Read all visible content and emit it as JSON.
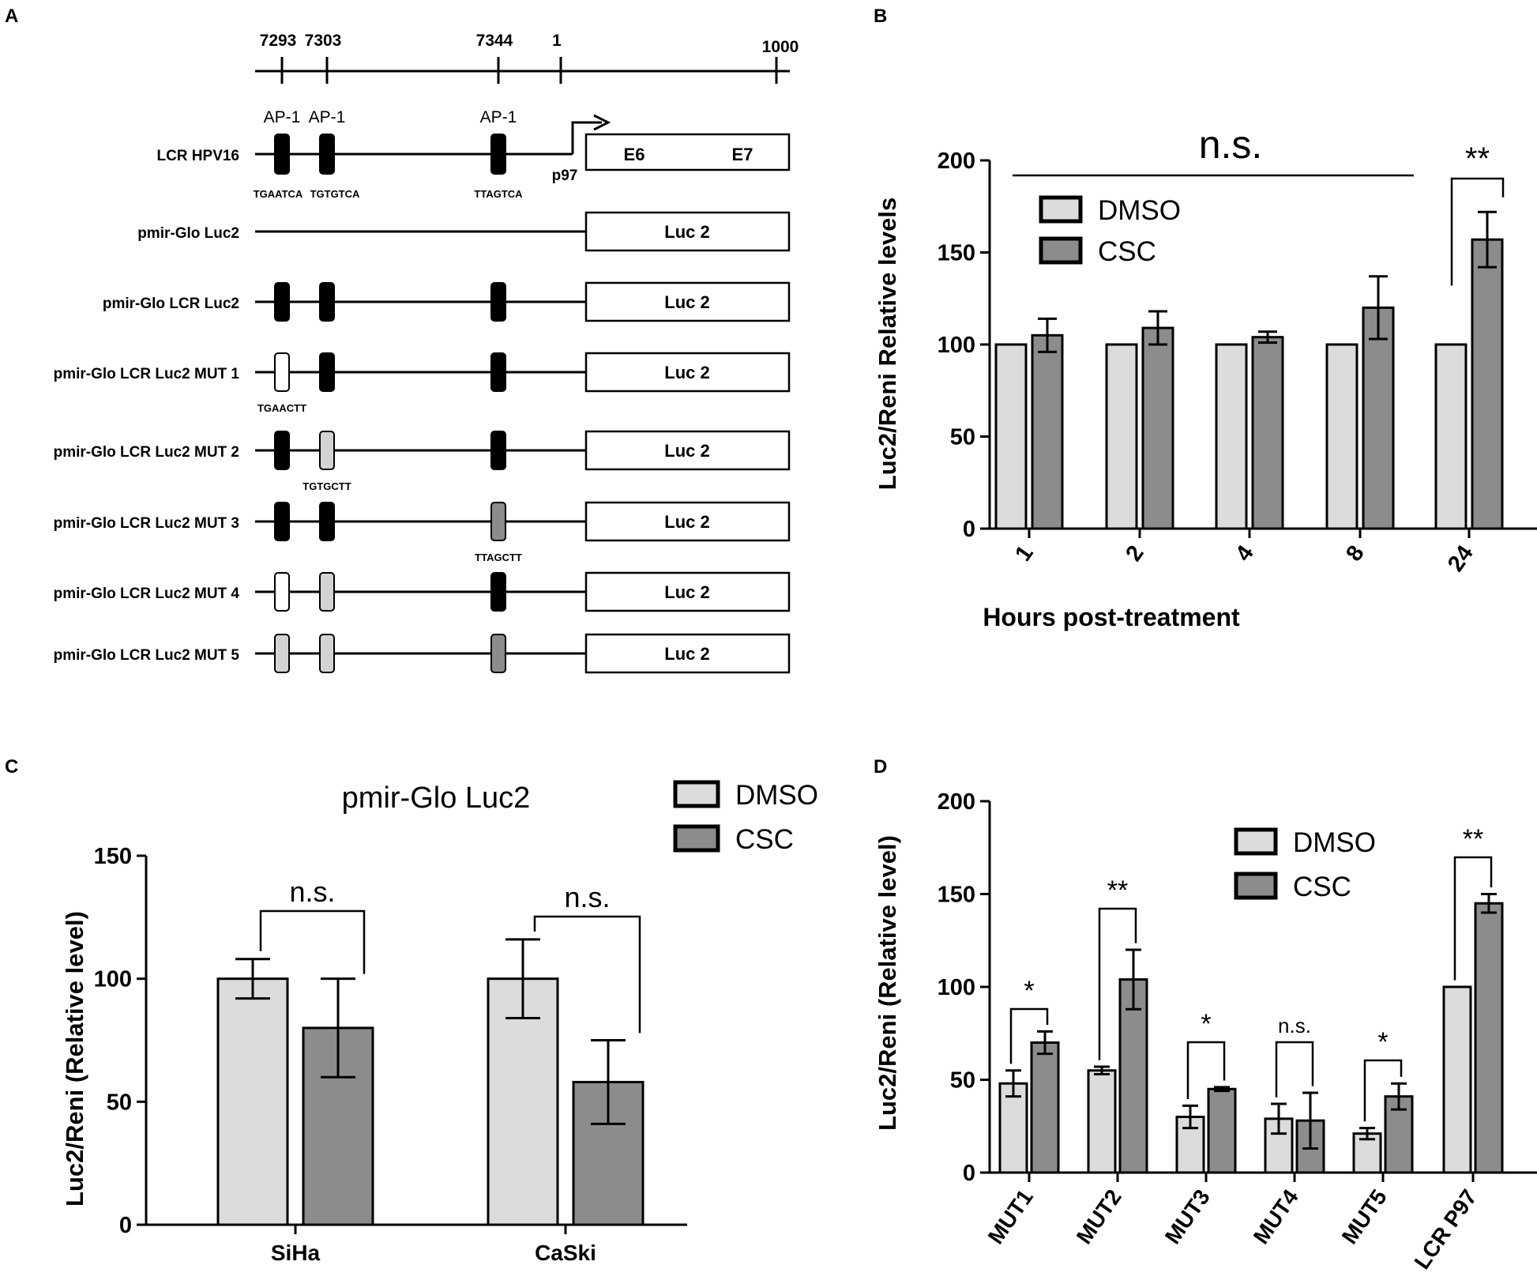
{
  "colors": {
    "dmso": "#dcdcdc",
    "csc": "#8c8c8c",
    "stroke": "#000000",
    "filled_site": "#000000",
    "open_site": "#ffffff",
    "light_site": "#d3d3d3",
    "grey_site": "#8c8c8c"
  },
  "panel_a": {
    "letter": "A",
    "axis_ticks": [
      "7293",
      "7303",
      "7344",
      "1",
      "1000"
    ],
    "lcr": {
      "name": "LCR HPV16",
      "site_label": "AP-1",
      "sequences": [
        "TGAATCA",
        "TGTGTCA",
        "TTAGTCA"
      ],
      "promoter": "p97",
      "box_labels": [
        "E6",
        "E7"
      ]
    },
    "constructs": [
      {
        "name": "pmir-Glo Luc2",
        "box": "Luc 2",
        "sites": [
          "none",
          "none",
          "none"
        ],
        "mutation": ""
      },
      {
        "name": "pmir-Glo LCR Luc2",
        "box": "Luc 2",
        "sites": [
          "black",
          "black",
          "black"
        ],
        "mutation": ""
      },
      {
        "name": "pmir-Glo LCR Luc2 MUT 1",
        "box": "Luc 2",
        "sites": [
          "white",
          "black",
          "black"
        ],
        "mutation": "TGAACTT"
      },
      {
        "name": "pmir-Glo LCR Luc2 MUT 2",
        "box": "Luc 2",
        "sites": [
          "black",
          "light",
          "black"
        ],
        "mutation": "TGTGCTT"
      },
      {
        "name": "pmir-Glo LCR Luc2 MUT 3",
        "box": "Luc 2",
        "sites": [
          "black",
          "black",
          "grey"
        ],
        "mutation": "TTAGCTT"
      },
      {
        "name": "pmir-Glo LCR Luc2 MUT 4",
        "box": "Luc 2",
        "sites": [
          "white",
          "light",
          "black"
        ],
        "mutation": ""
      },
      {
        "name": "pmir-Glo LCR Luc2 MUT 5",
        "box": "Luc 2",
        "sites": [
          "light",
          "light",
          "grey"
        ],
        "mutation": ""
      }
    ]
  },
  "chart_data": [
    {
      "panel": "B",
      "type": "bar",
      "title": "",
      "xlabel": "Hours post-treatment",
      "ylabel": "Luc2/Reni  Relative levels",
      "categories": [
        "1",
        "2",
        "4",
        "8",
        "24"
      ],
      "series": [
        {
          "name": "DMSO",
          "values": [
            100,
            100,
            100,
            100,
            100
          ],
          "errors": [
            0,
            0,
            0,
            0,
            0
          ]
        },
        {
          "name": "CSC",
          "values": [
            105,
            109,
            104,
            120,
            157
          ],
          "errors": [
            9,
            9,
            3,
            17,
            15
          ]
        }
      ],
      "ylim": [
        0,
        200
      ],
      "yticks": [
        "0",
        "50",
        "100",
        "150",
        "200"
      ],
      "legend": [
        "DMSO",
        "CSC"
      ],
      "legend_position": "top-left",
      "annotations": [
        "n.s.",
        "**"
      ]
    },
    {
      "panel": "C",
      "type": "bar",
      "title": "pmir-Glo Luc2",
      "xlabel": "",
      "ylabel": "Luc2/Reni  (Relative level)",
      "categories": [
        "SiHa",
        "CaSki"
      ],
      "series": [
        {
          "name": "DMSO",
          "values": [
            100,
            100
          ],
          "errors": [
            8,
            16
          ]
        },
        {
          "name": "CSC",
          "values": [
            80,
            58
          ],
          "errors": [
            20,
            17
          ]
        }
      ],
      "ylim": [
        0,
        150
      ],
      "yticks": [
        "0",
        "50",
        "100",
        "150"
      ],
      "legend": [
        "DMSO",
        "CSC"
      ],
      "legend_position": "top-right",
      "annotations": [
        "n.s.",
        "n.s."
      ]
    },
    {
      "panel": "D",
      "type": "bar",
      "title": "",
      "xlabel": "",
      "ylabel": "Luc2/Reni  (Relative level)",
      "categories": [
        "MUT1",
        "MUT2",
        "MUT3",
        "MUT4",
        "MUT5",
        "LCR P97"
      ],
      "series": [
        {
          "name": "DMSO",
          "values": [
            48,
            55,
            30,
            29,
            21,
            100
          ],
          "errors": [
            7,
            2,
            6,
            8,
            3,
            0
          ]
        },
        {
          "name": "CSC",
          "values": [
            70,
            104,
            45,
            28,
            41,
            145
          ],
          "errors": [
            6,
            16,
            1,
            15,
            7,
            5
          ]
        }
      ],
      "ylim": [
        0,
        200
      ],
      "yticks": [
        "0",
        "50",
        "100",
        "150",
        "200"
      ],
      "legend": [
        "DMSO",
        "CSC"
      ],
      "legend_position": "top-right",
      "annotations": [
        "*",
        "**",
        "*",
        "n.s.",
        "*",
        "**"
      ]
    }
  ]
}
